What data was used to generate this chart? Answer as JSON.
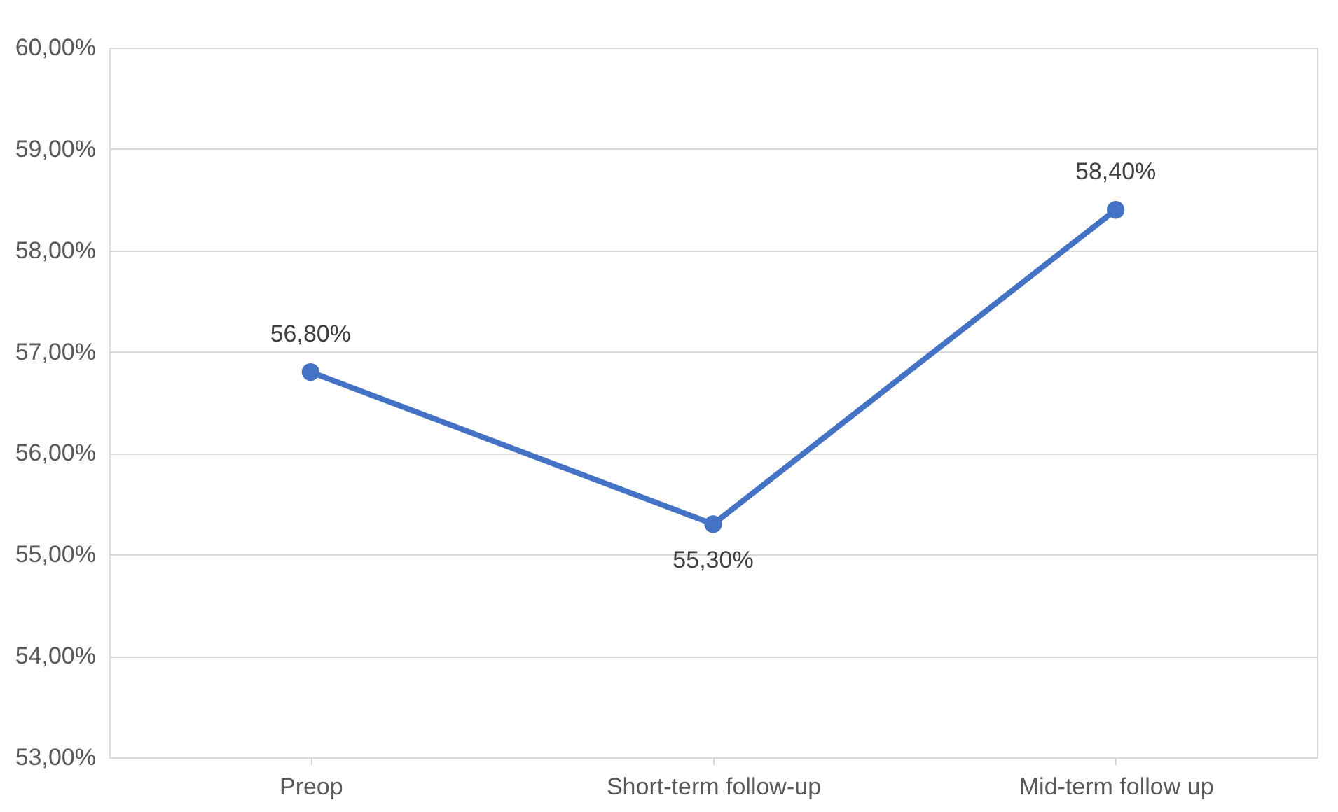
{
  "chart_data": {
    "type": "line",
    "categories": [
      "Preop",
      "Short-term follow-up",
      "Mid-term follow up"
    ],
    "series": [
      {
        "color": "#4472c4",
        "values": [
          56.8,
          55.3,
          58.4
        ],
        "value_labels": [
          "56,80%",
          "55,30%",
          "58,40%"
        ]
      }
    ],
    "ylim": [
      53,
      60
    ],
    "yticks": [
      {
        "value": 53,
        "label": "53,00%"
      },
      {
        "value": 54,
        "label": "54,00%"
      },
      {
        "value": 55,
        "label": "55,00%"
      },
      {
        "value": 56,
        "label": "56,00%"
      },
      {
        "value": 57,
        "label": "57,00%"
      },
      {
        "value": 58,
        "label": "58,00%"
      },
      {
        "value": 59,
        "label": "59,00%"
      },
      {
        "value": 60,
        "label": "60,00%"
      }
    ],
    "grid": "y",
    "marker": "circle",
    "line_style": "solid"
  }
}
